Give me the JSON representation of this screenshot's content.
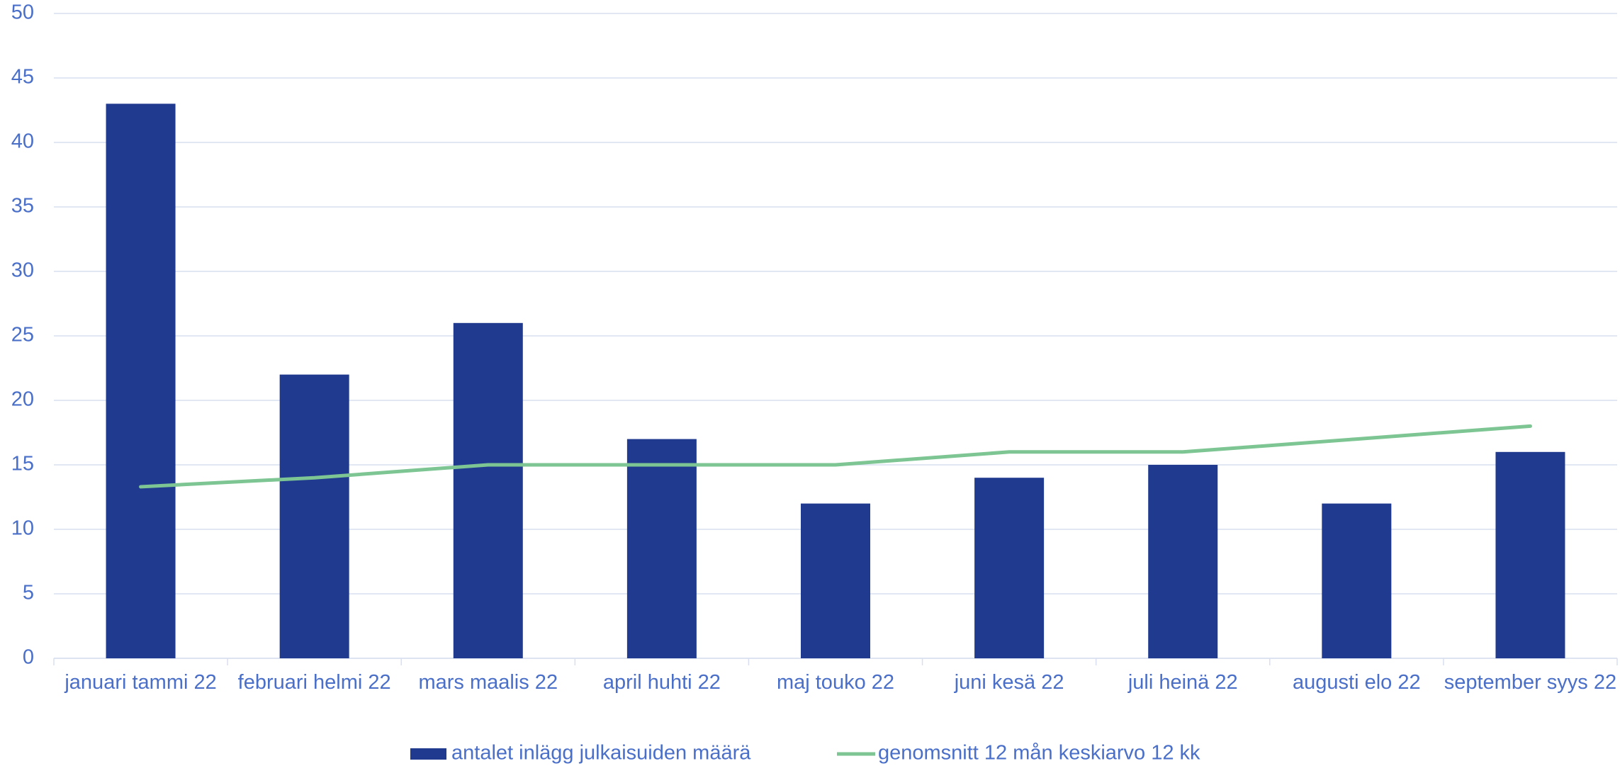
{
  "chart_data": {
    "type": "bar",
    "categories": [
      "januari tammi 22",
      "februari helmi 22",
      "mars maalis 22",
      "april huhti 22",
      "maj touko 22",
      "juni kesä 22",
      "juli heinä 22",
      "augusti elo 22",
      "september syys 22"
    ],
    "series": [
      {
        "name": "antalet inlägg julkaisuiden määrä",
        "type": "bar",
        "color": "#203a8f",
        "values": [
          43,
          22,
          26,
          17,
          12,
          14,
          15,
          12,
          16
        ]
      },
      {
        "name": "genomsnitt 12 mån keskiarvo 12 kk",
        "type": "line",
        "color": "#7dc592",
        "values": [
          13.3,
          14,
          15,
          15,
          15,
          16,
          16,
          17,
          18
        ]
      }
    ],
    "ylim": [
      0,
      50
    ],
    "yticks": [
      0,
      5,
      10,
      15,
      20,
      25,
      30,
      35,
      40,
      45,
      50
    ],
    "grid": true,
    "legend": "bottom"
  }
}
